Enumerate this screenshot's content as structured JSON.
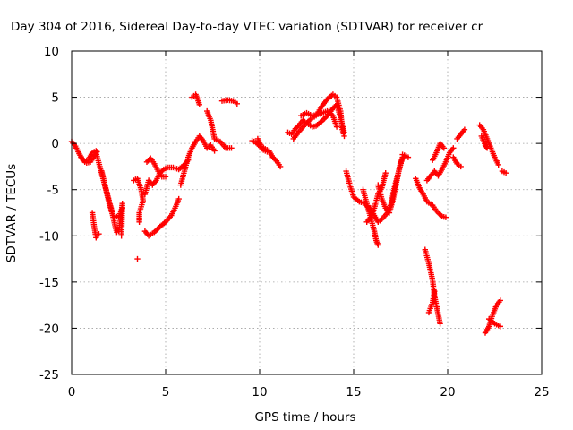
{
  "chart_data": {
    "type": "scatter",
    "title": "Day 304 of 2016, Sidereal Day-to-day VTEC variation (SDTVAR) for receiver cr",
    "xlabel": "GPS time / hours",
    "ylabel": "SDTVAR / TECUs",
    "xlim": [
      0,
      25
    ],
    "ylim": [
      -25,
      10
    ],
    "xticks": [
      0,
      5,
      10,
      15,
      20,
      25
    ],
    "yticks": [
      -25,
      -20,
      -15,
      -10,
      -5,
      0,
      5,
      10
    ],
    "grid": true,
    "marker": "plus",
    "color": "#ff0000",
    "segments": [
      [
        [
          0.0,
          0.2
        ],
        [
          0.2,
          -0.3
        ],
        [
          0.4,
          -1.1
        ],
        [
          0.6,
          -1.8
        ],
        [
          0.8,
          -2.1
        ],
        [
          1.0,
          -2.0
        ],
        [
          1.2,
          -1.4
        ],
        [
          1.35,
          -0.9
        ]
      ],
      [
        [
          0.5,
          -1.5
        ],
        [
          0.7,
          -2.0
        ],
        [
          0.9,
          -1.7
        ],
        [
          1.1,
          -1.0
        ],
        [
          1.3,
          -0.8
        ]
      ],
      [
        [
          1.1,
          -7.5
        ],
        [
          1.2,
          -9.0
        ],
        [
          1.3,
          -10.2
        ],
        [
          1.45,
          -9.8
        ]
      ],
      [
        [
          1.3,
          -1.0
        ],
        [
          1.5,
          -2.5
        ],
        [
          1.7,
          -4.0
        ],
        [
          1.9,
          -5.5
        ],
        [
          2.1,
          -7.0
        ],
        [
          2.3,
          -8.8
        ],
        [
          2.4,
          -9.6
        ]
      ],
      [
        [
          1.6,
          -3.0
        ],
        [
          1.8,
          -4.8
        ],
        [
          2.0,
          -6.5
        ],
        [
          2.2,
          -7.8
        ],
        [
          2.5,
          -8.0
        ],
        [
          2.7,
          -7.0
        ]
      ],
      [
        [
          2.5,
          -9.5
        ],
        [
          2.6,
          -8.2
        ],
        [
          2.7,
          -6.5
        ],
        [
          2.65,
          -10.0
        ]
      ],
      [
        [
          3.3,
          -4.0
        ],
        [
          3.5,
          -3.8
        ],
        [
          3.7,
          -5.0
        ],
        [
          3.8,
          -6.2
        ],
        [
          3.6,
          -7.5
        ],
        [
          3.6,
          -8.5
        ]
      ],
      [
        [
          3.5,
          -12.5
        ]
      ],
      [
        [
          3.9,
          -5.5
        ],
        [
          4.1,
          -4.0
        ],
        [
          4.3,
          -4.5
        ],
        [
          4.5,
          -4.0
        ],
        [
          4.7,
          -3.2
        ],
        [
          4.9,
          -2.8
        ],
        [
          5.1,
          -2.6
        ],
        [
          5.4,
          -2.6
        ],
        [
          5.7,
          -2.8
        ],
        [
          6.0,
          -2.3
        ],
        [
          6.2,
          -1.8
        ]
      ],
      [
        [
          4.0,
          -2.0
        ],
        [
          4.2,
          -1.6
        ],
        [
          4.4,
          -2.2
        ],
        [
          4.6,
          -3.0
        ],
        [
          4.8,
          -3.6
        ],
        [
          5.0,
          -3.6
        ]
      ],
      [
        [
          3.9,
          -9.5
        ],
        [
          4.1,
          -10.0
        ],
        [
          4.4,
          -9.6
        ],
        [
          4.7,
          -9.0
        ],
        [
          5.0,
          -8.5
        ],
        [
          5.3,
          -7.8
        ],
        [
          5.5,
          -7.0
        ],
        [
          5.7,
          -6.0
        ]
      ],
      [
        [
          5.8,
          -4.5
        ],
        [
          6.0,
          -3.0
        ],
        [
          6.2,
          -1.5
        ],
        [
          6.4,
          -0.5
        ],
        [
          6.6,
          0.2
        ],
        [
          6.8,
          0.8
        ],
        [
          7.0,
          0.3
        ],
        [
          7.2,
          -0.5
        ],
        [
          7.4,
          -0.2
        ],
        [
          7.6,
          -0.8
        ]
      ],
      [
        [
          6.4,
          5.0
        ],
        [
          6.6,
          5.3
        ],
        [
          6.7,
          4.8
        ],
        [
          6.8,
          4.2
        ]
      ],
      [
        [
          7.2,
          3.5
        ],
        [
          7.4,
          2.5
        ],
        [
          7.5,
          1.5
        ],
        [
          7.6,
          0.5
        ],
        [
          7.9,
          0.2
        ],
        [
          8.2,
          -0.5
        ],
        [
          8.5,
          -0.5
        ]
      ],
      [
        [
          8.0,
          4.6
        ],
        [
          8.3,
          4.7
        ],
        [
          8.6,
          4.6
        ],
        [
          8.8,
          4.3
        ]
      ],
      [
        [
          9.6,
          0.3
        ],
        [
          9.8,
          0.1
        ],
        [
          10.0,
          -0.3
        ],
        [
          10.2,
          -0.7
        ],
        [
          10.4,
          -0.9
        ]
      ],
      [
        [
          9.9,
          0.5
        ],
        [
          10.1,
          -0.3
        ],
        [
          10.3,
          -0.6
        ],
        [
          10.5,
          -0.8
        ],
        [
          10.7,
          -1.5
        ],
        [
          10.9,
          -1.9
        ],
        [
          11.1,
          -2.5
        ]
      ],
      [
        [
          11.5,
          1.2
        ],
        [
          11.7,
          1.0
        ],
        [
          11.9,
          1.6
        ],
        [
          12.1,
          2.0
        ],
        [
          12.3,
          2.5
        ],
        [
          12.5,
          2.2
        ],
        [
          12.8,
          1.8
        ],
        [
          13.0,
          1.9
        ],
        [
          13.3,
          2.4
        ],
        [
          13.6,
          3.0
        ],
        [
          13.9,
          3.8
        ],
        [
          14.1,
          4.2
        ],
        [
          14.3,
          2.8
        ],
        [
          14.4,
          2.0
        ],
        [
          14.5,
          1.2
        ]
      ],
      [
        [
          11.8,
          0.5
        ],
        [
          12.1,
          1.3
        ],
        [
          12.4,
          2.0
        ],
        [
          12.7,
          2.6
        ],
        [
          13.0,
          3.0
        ],
        [
          13.3,
          4.0
        ],
        [
          13.6,
          4.8
        ],
        [
          13.9,
          5.3
        ],
        [
          14.1,
          5.0
        ],
        [
          14.3,
          3.5
        ],
        [
          14.4,
          1.5
        ],
        [
          14.5,
          0.8
        ]
      ],
      [
        [
          12.2,
          3.0
        ],
        [
          12.5,
          3.3
        ],
        [
          12.8,
          3.0
        ],
        [
          13.2,
          3.2
        ],
        [
          13.6,
          3.5
        ],
        [
          13.9,
          3.0
        ],
        [
          14.1,
          1.8
        ]
      ],
      [
        [
          14.6,
          -3.0
        ],
        [
          14.8,
          -4.5
        ],
        [
          15.0,
          -5.8
        ],
        [
          15.3,
          -6.3
        ],
        [
          15.6,
          -6.5
        ],
        [
          15.8,
          -7.0
        ],
        [
          16.0,
          -8.0
        ]
      ],
      [
        [
          15.5,
          -5.0
        ],
        [
          15.7,
          -6.5
        ],
        [
          15.9,
          -8.0
        ],
        [
          16.1,
          -9.5
        ],
        [
          16.2,
          -10.5
        ],
        [
          16.3,
          -11.0
        ]
      ],
      [
        [
          15.7,
          -8.5
        ],
        [
          15.9,
          -8.0
        ],
        [
          16.1,
          -7.0
        ],
        [
          16.3,
          -5.5
        ],
        [
          16.5,
          -4.8
        ],
        [
          16.7,
          -3.2
        ]
      ],
      [
        [
          15.9,
          -7.0
        ],
        [
          16.1,
          -7.8
        ],
        [
          16.3,
          -8.5
        ],
        [
          16.5,
          -8.2
        ],
        [
          16.8,
          -7.5
        ],
        [
          17.0,
          -6.5
        ],
        [
          17.2,
          -4.5
        ],
        [
          17.4,
          -3.0
        ],
        [
          17.6,
          -1.5
        ]
      ],
      [
        [
          16.3,
          -4.5
        ],
        [
          16.5,
          -6.0
        ],
        [
          16.7,
          -7.0
        ],
        [
          16.9,
          -7.5
        ],
        [
          17.1,
          -6.0
        ],
        [
          17.3,
          -4.0
        ],
        [
          17.5,
          -2.0
        ],
        [
          17.7,
          -1.3
        ]
      ],
      [
        [
          17.6,
          -1.2
        ],
        [
          17.9,
          -1.5
        ]
      ],
      [
        [
          18.3,
          -3.8
        ],
        [
          18.5,
          -4.8
        ],
        [
          18.7,
          -5.5
        ],
        [
          18.9,
          -6.3
        ],
        [
          19.2,
          -6.7
        ],
        [
          19.4,
          -7.3
        ],
        [
          19.7,
          -7.9
        ],
        [
          19.9,
          -8.0
        ]
      ],
      [
        [
          18.8,
          -11.5
        ],
        [
          19.0,
          -13.0
        ],
        [
          19.2,
          -14.8
        ],
        [
          19.3,
          -16.5
        ],
        [
          19.5,
          -18.5
        ],
        [
          19.6,
          -19.5
        ]
      ],
      [
        [
          19.0,
          -18.3
        ],
        [
          19.2,
          -17.2
        ],
        [
          19.3,
          -16.0
        ]
      ],
      [
        [
          18.9,
          -4.0
        ],
        [
          19.1,
          -3.5
        ],
        [
          19.3,
          -3.0
        ],
        [
          19.5,
          -3.5
        ],
        [
          19.7,
          -2.8
        ],
        [
          19.9,
          -2.0
        ],
        [
          20.1,
          -1.0
        ],
        [
          20.3,
          -0.5
        ]
      ],
      [
        [
          19.2,
          -1.8
        ],
        [
          19.4,
          -1.0
        ],
        [
          19.6,
          0.0
        ],
        [
          19.8,
          -0.5
        ]
      ],
      [
        [
          20.3,
          -1.5
        ],
        [
          20.5,
          -2.2
        ],
        [
          20.7,
          -2.5
        ]
      ],
      [
        [
          20.5,
          0.5
        ],
        [
          20.7,
          1.0
        ],
        [
          20.9,
          1.5
        ]
      ],
      [
        [
          21.7,
          2.0
        ],
        [
          21.9,
          1.5
        ],
        [
          22.1,
          0.5
        ],
        [
          22.3,
          -0.5
        ],
        [
          22.5,
          -1.5
        ],
        [
          22.7,
          -2.3
        ]
      ],
      [
        [
          21.8,
          0.8
        ],
        [
          22.0,
          -0.2
        ],
        [
          22.1,
          -0.5
        ]
      ],
      [
        [
          22.9,
          -3.0
        ],
        [
          23.1,
          -3.2
        ]
      ],
      [
        [
          22.0,
          -20.5
        ],
        [
          22.2,
          -19.8
        ],
        [
          22.4,
          -18.5
        ],
        [
          22.6,
          -17.5
        ],
        [
          22.8,
          -17.0
        ]
      ],
      [
        [
          22.2,
          -19.0
        ],
        [
          22.5,
          -19.5
        ],
        [
          22.8,
          -19.8
        ]
      ]
    ]
  }
}
